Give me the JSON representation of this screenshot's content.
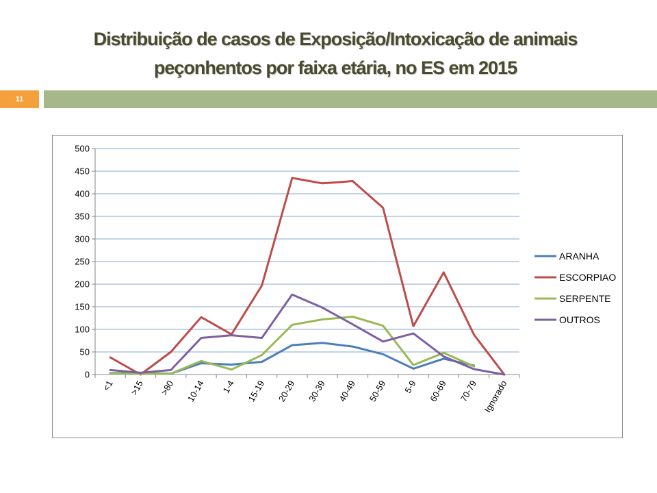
{
  "slide": {
    "title_line1": "Distribuição de casos de Exposição/Intoxicação de animais",
    "title_line2": "peçonhentos por faixa etária, no ES em 2015",
    "number": "11",
    "accent_color": "#f4a03c",
    "bar_color": "#a6b88a"
  },
  "chart_data": {
    "type": "line",
    "title": "",
    "xlabel": "",
    "ylabel": "",
    "categories": [
      "<1",
      ">15",
      ">80",
      "10-14",
      "1-4",
      "15-19",
      "20-29",
      "30-39",
      "40-49",
      "50-59",
      "5-9",
      "60-69",
      "70-79",
      "Ignorado"
    ],
    "ylim": [
      0,
      500
    ],
    "yticks": [
      0,
      50,
      100,
      150,
      200,
      250,
      300,
      350,
      400,
      450,
      500
    ],
    "grid": true,
    "legend_position": "right",
    "series": [
      {
        "name": "ARANHA",
        "color": "#4a7ebb",
        "values": [
          3,
          3,
          2,
          25,
          22,
          28,
          65,
          70,
          62,
          45,
          13,
          35,
          20,
          null
        ]
      },
      {
        "name": "ESCORPIAO",
        "color": "#be4b48",
        "values": [
          38,
          0,
          50,
          127,
          89,
          197,
          435,
          423,
          428,
          369,
          107,
          226,
          88,
          0
        ]
      },
      {
        "name": "SERPENTE",
        "color": "#98b954",
        "values": [
          2,
          2,
          2,
          30,
          11,
          43,
          110,
          122,
          128,
          108,
          21,
          48,
          18,
          null
        ]
      },
      {
        "name": "OUTROS",
        "color": "#7d60a0",
        "values": [
          10,
          4,
          10,
          81,
          87,
          81,
          177,
          148,
          111,
          73,
          91,
          40,
          12,
          0
        ]
      }
    ]
  }
}
